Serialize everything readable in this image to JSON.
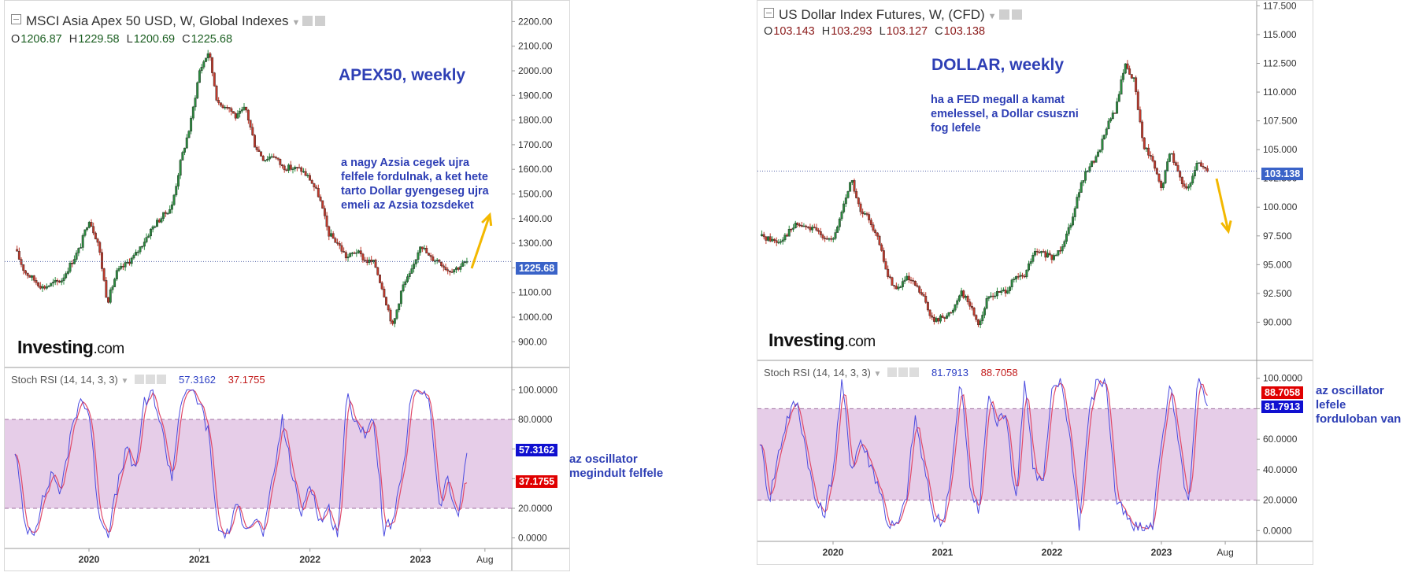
{
  "left": {
    "title": "MSCI Asia Apex 50 USD, W, Global Indexes",
    "ohlc": {
      "o_label": "O",
      "o": "1206.87",
      "h_label": "H",
      "h": "1229.58",
      "l_label": "L",
      "l": "1200.69",
      "c_label": "C",
      "c": "1225.68"
    },
    "annotation_title": "APEX50, weekly",
    "annotation_text": "a nagy Azsia cegek ujra\nfelfele fordulnak, a ket hete\ntarto Dollar gyengeseg ujra\nemeli az Azsia tozsdeket",
    "logo_main": "Investing",
    "logo_suffix": ".com",
    "last_price_tag": "1225.68",
    "indicator": {
      "name": "Stoch RSI (14, 14, 3, 3)",
      "k_value": "57.3162",
      "d_value": "37.1755"
    },
    "side_note": "az oscillator\nmegindult felfele"
  },
  "right": {
    "title": "US Dollar Index Futures, W, (CFD)",
    "ohlc": {
      "o_label": "O",
      "o": "103.143",
      "h_label": "H",
      "h": "103.293",
      "l_label": "L",
      "l": "103.127",
      "c_label": "C",
      "c": "103.138"
    },
    "annotation_title": "DOLLAR,  weekly",
    "annotation_text": "ha a FED megall a kamat\nemelessel, a Dollar csuszni\nfog lefele",
    "logo_main": "Investing",
    "logo_suffix": ".com",
    "last_price_tag": "103.138",
    "indicator": {
      "name": "Stoch RSI (14, 14, 3, 3)",
      "k_value": "81.7913",
      "d_value": "88.7058"
    },
    "side_note": "az oscillator\nlefele\nforduloban van"
  },
  "colors": {
    "up": "#2a8a3e",
    "down": "#c0392b",
    "band": "#e6cde8",
    "k_line": "#4a4ae0",
    "d_line": "#e04a6a",
    "tag_blue": "#3a63c8",
    "tag_red": "#e00000",
    "tag_dblue": "#1010d0",
    "arrow": "#f3b800",
    "last_line": "#5566aa"
  },
  "chart_data": [
    {
      "type": "candlestick",
      "title": "MSCI Asia Apex 50 USD, W, Global Indexes",
      "interval": "W",
      "x_tick_labels": [
        "2020",
        "2021",
        "2022",
        "2023",
        "Aug"
      ],
      "y_tick_labels": [
        "2200.00",
        "2100.00",
        "2000.00",
        "1900.00",
        "1800.00",
        "1700.00",
        "1600.00",
        "1500.00",
        "1400.00",
        "1300.00",
        "1200.00",
        "1100.00",
        "1000.00",
        "900.00"
      ],
      "ylim": [
        850,
        2230
      ],
      "last_price": 1225.68,
      "close_anchors": [
        [
          "2019-05",
          1275
        ],
        [
          "2019-06",
          1185
        ],
        [
          "2019-08",
          1120
        ],
        [
          "2019-10",
          1150
        ],
        [
          "2019-12",
          1280
        ],
        [
          "2020-01",
          1400
        ],
        [
          "2020-02",
          1300
        ],
        [
          "2020-03",
          1060
        ],
        [
          "2020-04",
          1180
        ],
        [
          "2020-06",
          1250
        ],
        [
          "2020-08",
          1370
        ],
        [
          "2020-10",
          1450
        ],
        [
          "2020-11",
          1640
        ],
        [
          "2020-12",
          1780
        ],
        [
          "2021-01",
          2000
        ],
        [
          "2021-02",
          2080
        ],
        [
          "2021-03",
          1860
        ],
        [
          "2021-04",
          1860
        ],
        [
          "2021-05",
          1810
        ],
        [
          "2021-06",
          1850
        ],
        [
          "2021-07",
          1700
        ],
        [
          "2021-08",
          1640
        ],
        [
          "2021-09",
          1660
        ],
        [
          "2021-10",
          1610
        ],
        [
          "2021-12",
          1600
        ],
        [
          "2022-01",
          1560
        ],
        [
          "2022-02",
          1490
        ],
        [
          "2022-03",
          1340
        ],
        [
          "2022-04",
          1300
        ],
        [
          "2022-05",
          1240
        ],
        [
          "2022-06",
          1270
        ],
        [
          "2022-07",
          1230
        ],
        [
          "2022-08",
          1220
        ],
        [
          "2022-09",
          1100
        ],
        [
          "2022-10",
          960
        ],
        [
          "2022-11",
          1120
        ],
        [
          "2022-12",
          1180
        ],
        [
          "2023-01",
          1300
        ],
        [
          "2023-02",
          1240
        ],
        [
          "2023-03",
          1230
        ],
        [
          "2023-04",
          1190
        ],
        [
          "2023-05",
          1200
        ],
        [
          "2023-06",
          1226
        ]
      ],
      "indicator": {
        "name": "Stoch RSI (14, 14, 3, 3)",
        "k": 57.3162,
        "d": 37.1755,
        "bands": [
          20,
          80
        ],
        "ylim": [
          -5,
          105
        ],
        "y_tick_labels": [
          "100.0000",
          "80.0000",
          "60.0000",
          "40.0000",
          "20.0000",
          "0.0000"
        ],
        "k_anchors": [
          [
            "2019-05",
            60
          ],
          [
            "2019-06",
            8
          ],
          [
            "2019-07",
            5
          ],
          [
            "2019-09",
            45
          ],
          [
            "2019-10",
            30
          ],
          [
            "2019-11",
            70
          ],
          [
            "2019-12",
            95
          ],
          [
            "2020-01",
            85
          ],
          [
            "2020-02",
            20
          ],
          [
            "2020-03",
            2
          ],
          [
            "2020-05",
            60
          ],
          [
            "2020-06",
            45
          ],
          [
            "2020-07",
            90
          ],
          [
            "2020-08",
            98
          ],
          [
            "2020-09",
            70
          ],
          [
            "2020-10",
            40
          ],
          [
            "2020-11",
            95
          ],
          [
            "2020-12",
            100
          ],
          [
            "2021-01",
            92
          ],
          [
            "2021-02",
            70
          ],
          [
            "2021-03",
            5
          ],
          [
            "2021-04",
            2
          ],
          [
            "2021-05",
            20
          ],
          [
            "2021-06",
            10
          ],
          [
            "2021-07",
            12
          ],
          [
            "2021-08",
            3
          ],
          [
            "2021-09",
            40
          ],
          [
            "2021-10",
            80
          ],
          [
            "2021-11",
            45
          ],
          [
            "2021-12",
            15
          ],
          [
            "2022-01",
            40
          ],
          [
            "2022-02",
            10
          ],
          [
            "2022-03",
            20
          ],
          [
            "2022-04",
            2
          ],
          [
            "2022-05",
            95
          ],
          [
            "2022-06",
            80
          ],
          [
            "2022-07",
            70
          ],
          [
            "2022-08",
            78
          ],
          [
            "2022-09",
            5
          ],
          [
            "2022-10",
            10
          ],
          [
            "2022-11",
            40
          ],
          [
            "2022-12",
            96
          ],
          [
            "2023-01",
            100
          ],
          [
            "2023-02",
            95
          ],
          [
            "2023-03",
            20
          ],
          [
            "2023-04",
            40
          ],
          [
            "2023-05",
            10
          ],
          [
            "2023-06",
            57
          ]
        ]
      }
    },
    {
      "type": "candlestick",
      "title": "US Dollar Index Futures, W, (CFD)",
      "interval": "W",
      "x_tick_labels": [
        "2020",
        "2021",
        "2022",
        "2023",
        "Aug"
      ],
      "y_tick_labels": [
        "117.500",
        "115.000",
        "112.500",
        "110.000",
        "107.500",
        "105.000",
        "102.500",
        "100.000",
        "97.500",
        "95.000",
        "92.500",
        "90.000"
      ],
      "ylim": [
        88.8,
        117.8
      ],
      "last_price": 103.138,
      "close_anchors": [
        [
          "2019-05",
          97.5
        ],
        [
          "2019-07",
          97.0
        ],
        [
          "2019-09",
          98.5
        ],
        [
          "2019-11",
          98.0
        ],
        [
          "2020-01",
          97.0
        ],
        [
          "2020-03",
          102.5
        ],
        [
          "2020-04",
          99.5
        ],
        [
          "2020-05",
          99.0
        ],
        [
          "2020-06",
          97.0
        ],
        [
          "2020-07",
          94.0
        ],
        [
          "2020-08",
          92.8
        ],
        [
          "2020-09",
          93.8
        ],
        [
          "2020-10",
          93.2
        ],
        [
          "2020-11",
          92.0
        ],
        [
          "2020-12",
          90.0
        ],
        [
          "2021-01",
          90.5
        ],
        [
          "2021-02",
          90.8
        ],
        [
          "2021-03",
          92.8
        ],
        [
          "2021-04",
          91.5
        ],
        [
          "2021-05",
          89.8
        ],
        [
          "2021-06",
          92.2
        ],
        [
          "2021-07",
          92.5
        ],
        [
          "2021-08",
          92.8
        ],
        [
          "2021-09",
          93.8
        ],
        [
          "2021-10",
          94.0
        ],
        [
          "2021-11",
          96.0
        ],
        [
          "2021-12",
          96.0
        ],
        [
          "2022-01",
          95.5
        ],
        [
          "2022-02",
          96.5
        ],
        [
          "2022-03",
          98.5
        ],
        [
          "2022-04",
          101.5
        ],
        [
          "2022-05",
          103.5
        ],
        [
          "2022-06",
          104.5
        ],
        [
          "2022-07",
          107.0
        ],
        [
          "2022-08",
          108.5
        ],
        [
          "2022-09",
          112.5
        ],
        [
          "2022-10",
          111.0
        ],
        [
          "2022-11",
          105.5
        ],
        [
          "2022-12",
          104.0
        ],
        [
          "2023-01",
          101.5
        ],
        [
          "2023-02",
          105.0
        ],
        [
          "2023-03",
          102.5
        ],
        [
          "2023-04",
          101.5
        ],
        [
          "2023-05",
          104.0
        ],
        [
          "2023-06",
          103.138
        ]
      ],
      "indicator": {
        "name": "Stoch RSI (14, 14, 3, 3)",
        "k": 81.7913,
        "d": 88.7058,
        "bands": [
          20,
          80
        ],
        "ylim": [
          -5,
          105
        ],
        "y_tick_labels": [
          "100.0000",
          "80.0000",
          "60.0000",
          "40.0000",
          "20.0000",
          "0.0000"
        ],
        "k_anchors": [
          [
            "2019-05",
            60
          ],
          [
            "2019-06",
            20
          ],
          [
            "2019-07",
            50
          ],
          [
            "2019-08",
            75
          ],
          [
            "2019-09",
            85
          ],
          [
            "2019-10",
            55
          ],
          [
            "2019-11",
            20
          ],
          [
            "2019-12",
            10
          ],
          [
            "2020-01",
            40
          ],
          [
            "2020-02",
            98
          ],
          [
            "2020-03",
            40
          ],
          [
            "2020-04",
            60
          ],
          [
            "2020-05",
            45
          ],
          [
            "2020-06",
            30
          ],
          [
            "2020-07",
            5
          ],
          [
            "2020-08",
            2
          ],
          [
            "2020-09",
            20
          ],
          [
            "2020-10",
            75
          ],
          [
            "2020-11",
            40
          ],
          [
            "2020-12",
            10
          ],
          [
            "2021-01",
            5
          ],
          [
            "2021-02",
            40
          ],
          [
            "2021-03",
            100
          ],
          [
            "2021-04",
            30
          ],
          [
            "2021-05",
            10
          ],
          [
            "2021-06",
            90
          ],
          [
            "2021-07",
            70
          ],
          [
            "2021-08",
            80
          ],
          [
            "2021-09",
            15
          ],
          [
            "2021-10",
            100
          ],
          [
            "2021-11",
            40
          ],
          [
            "2021-12",
            30
          ],
          [
            "2022-01",
            90
          ],
          [
            "2022-02",
            100
          ],
          [
            "2022-03",
            60
          ],
          [
            "2022-04",
            2
          ],
          [
            "2022-05",
            75
          ],
          [
            "2022-06",
            100
          ],
          [
            "2022-07",
            95
          ],
          [
            "2022-08",
            20
          ],
          [
            "2022-09",
            10
          ],
          [
            "2022-10",
            1
          ],
          [
            "2022-11",
            1
          ],
          [
            "2022-12",
            2
          ],
          [
            "2023-01",
            60
          ],
          [
            "2023-02",
            95
          ],
          [
            "2023-03",
            50
          ],
          [
            "2023-04",
            15
          ],
          [
            "2023-05",
            100
          ],
          [
            "2023-06",
            82
          ]
        ]
      }
    }
  ]
}
